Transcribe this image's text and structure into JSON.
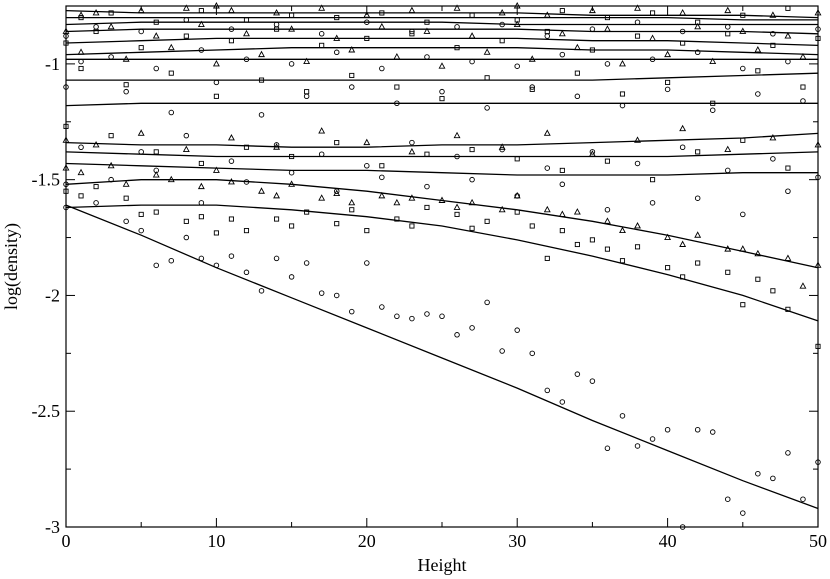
{
  "chart_data": {
    "type": "scatter",
    "title": "",
    "xlabel": "Height",
    "ylabel": "log(density)",
    "xlim": [
      0,
      50
    ],
    "ylim": [
      -3,
      -0.75
    ],
    "x_ticks": [
      0,
      10,
      20,
      30,
      40,
      50
    ],
    "x_tick_labels": [
      "0",
      "10",
      "20",
      "30",
      "40",
      "50"
    ],
    "y_ticks": [
      -3,
      -2.5,
      -2,
      -1.5,
      -1
    ],
    "y_tick_labels": [
      "-3",
      "-2.5",
      "-2",
      "-1.5",
      "-1"
    ],
    "grid": false,
    "legend": "none",
    "marker_shapes": [
      "circle",
      "square",
      "triangle"
    ],
    "series": [
      {
        "marker": "circle",
        "x": [
          0,
          2,
          4,
          5,
          6,
          7,
          8,
          9,
          10,
          11,
          12,
          13,
          14,
          15,
          16,
          17,
          18,
          19,
          20,
          21,
          22,
          23,
          24,
          25,
          26,
          27,
          28,
          29,
          30,
          31,
          32,
          33,
          34,
          35,
          36,
          37,
          38,
          39,
          40,
          41,
          42,
          43,
          44,
          45,
          46,
          47,
          48,
          49,
          50
        ],
        "y": [
          -1.62,
          -1.6,
          -1.68,
          -1.72,
          -1.87,
          -1.85,
          -1.75,
          -1.84,
          -1.87,
          -1.83,
          -1.9,
          -1.98,
          -1.84,
          -1.92,
          -1.86,
          -1.99,
          -2.0,
          -2.07,
          -1.86,
          -2.05,
          -2.09,
          -2.1,
          -2.08,
          -2.09,
          -2.17,
          -2.14,
          -2.03,
          -2.24,
          -2.15,
          -2.25,
          -2.41,
          -2.46,
          -2.34,
          -2.37,
          -2.66,
          -2.52,
          -2.65,
          -2.62,
          -2.58,
          -3.0,
          -2.58,
          -2.59,
          -2.88,
          -2.94,
          -2.77,
          -2.79,
          -2.68,
          -2.88,
          -2.72
        ]
      },
      {
        "marker": "circle",
        "x": [
          0,
          3,
          6,
          9,
          12,
          15,
          18,
          21,
          24,
          27,
          30,
          33,
          36,
          39,
          42,
          45,
          48
        ],
        "y": [
          -1.52,
          -1.5,
          -1.46,
          -1.6,
          -1.51,
          -1.47,
          -1.55,
          -1.49,
          -1.53,
          -1.5,
          -1.57,
          -1.52,
          -1.63,
          -1.6,
          -1.58,
          -1.65,
          -1.55
        ]
      },
      {
        "marker": "circle",
        "x": [
          1,
          5,
          8,
          11,
          14,
          17,
          20,
          23,
          26,
          29,
          32,
          35,
          38,
          41,
          44,
          47,
          50
        ],
        "y": [
          -1.36,
          -1.38,
          -1.31,
          -1.42,
          -1.35,
          -1.39,
          -1.44,
          -1.34,
          -1.4,
          -1.37,
          -1.45,
          -1.38,
          -1.43,
          -1.36,
          -1.46,
          -1.41,
          -1.49
        ]
      },
      {
        "marker": "circle",
        "x": [
          0,
          4,
          7,
          10,
          13,
          16,
          19,
          22,
          25,
          28,
          31,
          34,
          37,
          40,
          43,
          46,
          49
        ],
        "y": [
          -1.1,
          -1.12,
          -1.21,
          -1.08,
          -1.22,
          -1.14,
          -1.1,
          -1.17,
          -1.12,
          -1.19,
          -1.1,
          -1.14,
          -1.18,
          -1.11,
          -1.2,
          -1.13,
          -1.16
        ]
      },
      {
        "marker": "circle",
        "x": [
          1,
          3,
          6,
          9,
          12,
          15,
          18,
          21,
          24,
          27,
          30,
          33,
          36,
          39,
          42,
          45,
          48
        ],
        "y": [
          -0.99,
          -0.97,
          -1.02,
          -0.94,
          -0.98,
          -1.0,
          -0.95,
          -1.02,
          -0.97,
          -0.99,
          -1.01,
          -0.96,
          -1.0,
          -0.98,
          -0.95,
          -1.02,
          -0.99
        ]
      },
      {
        "marker": "circle",
        "x": [
          0,
          2,
          5,
          8,
          11,
          14,
          17,
          20,
          23,
          26,
          29,
          32,
          35,
          38,
          41,
          44,
          47,
          50
        ],
        "y": [
          -0.88,
          -0.84,
          -0.86,
          -0.81,
          -0.85,
          -0.83,
          -0.87,
          -0.82,
          -0.86,
          -0.84,
          -0.83,
          -0.88,
          -0.85,
          -0.82,
          -0.86,
          -0.84,
          -0.87,
          -0.85
        ]
      },
      {
        "marker": "square",
        "x": [
          0,
          1,
          2,
          4,
          5,
          6,
          8,
          9,
          10,
          11,
          12,
          14,
          15,
          16,
          18,
          19,
          20,
          22,
          23,
          24,
          26,
          27,
          28,
          30,
          31,
          32,
          33,
          34,
          35,
          36,
          37,
          38,
          40,
          41,
          42,
          44,
          45,
          46,
          47,
          48,
          50
        ],
        "y": [
          -1.55,
          -1.57,
          -1.53,
          -1.58,
          -1.65,
          -1.64,
          -1.68,
          -1.66,
          -1.73,
          -1.67,
          -1.72,
          -1.67,
          -1.7,
          -1.64,
          -1.69,
          -1.63,
          -1.72,
          -1.67,
          -1.7,
          -1.62,
          -1.65,
          -1.71,
          -1.68,
          -1.64,
          -1.7,
          -1.84,
          -1.72,
          -1.78,
          -1.76,
          -1.8,
          -1.85,
          -1.79,
          -1.88,
          -1.92,
          -1.86,
          -1.9,
          -2.04,
          -1.93,
          -1.98,
          -2.06,
          -2.22
        ]
      },
      {
        "marker": "square",
        "x": [
          0,
          3,
          6,
          9,
          12,
          15,
          18,
          21,
          24,
          27,
          30,
          33,
          36,
          39,
          42,
          45,
          48
        ],
        "y": [
          -1.27,
          -1.31,
          -1.38,
          -1.43,
          -1.36,
          -1.4,
          -1.34,
          -1.44,
          -1.39,
          -1.37,
          -1.41,
          -1.46,
          -1.42,
          -1.5,
          -1.38,
          -1.33,
          -1.45
        ]
      },
      {
        "marker": "square",
        "x": [
          1,
          4,
          7,
          10,
          13,
          16,
          19,
          22,
          25,
          28,
          31,
          34,
          37,
          40,
          43,
          46,
          49
        ],
        "y": [
          -1.02,
          -1.09,
          -1.04,
          -1.14,
          -1.07,
          -1.12,
          -1.05,
          -1.1,
          -1.15,
          -1.06,
          -1.11,
          -1.04,
          -1.13,
          -1.08,
          -1.17,
          -1.03,
          -1.1
        ]
      },
      {
        "marker": "square",
        "x": [
          0,
          2,
          5,
          8,
          11,
          14,
          17,
          20,
          23,
          26,
          29,
          32,
          35,
          38,
          41,
          44,
          47,
          50
        ],
        "y": [
          -0.91,
          -0.86,
          -0.93,
          -0.88,
          -0.9,
          -0.85,
          -0.92,
          -0.89,
          -0.87,
          -0.93,
          -0.9,
          -0.86,
          -0.94,
          -0.88,
          -0.91,
          -0.87,
          -0.92,
          -0.89
        ]
      },
      {
        "marker": "square",
        "x": [
          1,
          3,
          6,
          9,
          12,
          15,
          18,
          21,
          24,
          27,
          30,
          33,
          36,
          39,
          42,
          45,
          48
        ],
        "y": [
          -0.8,
          -0.78,
          -0.82,
          -0.77,
          -0.81,
          -0.79,
          -0.8,
          -0.78,
          -0.82,
          -0.79,
          -0.81,
          -0.77,
          -0.8,
          -0.78,
          -0.82,
          -0.79,
          -0.76
        ]
      },
      {
        "marker": "triangle",
        "x": [
          0,
          1,
          3,
          4,
          6,
          7,
          9,
          10,
          11,
          13,
          14,
          15,
          17,
          18,
          19,
          21,
          22,
          23,
          25,
          26,
          27,
          29,
          30,
          32,
          33,
          34,
          36,
          37,
          38,
          40,
          41,
          42,
          44,
          45,
          46,
          48,
          49,
          50
        ],
        "y": [
          -1.45,
          -1.47,
          -1.44,
          -1.52,
          -1.48,
          -1.5,
          -1.53,
          -1.46,
          -1.51,
          -1.55,
          -1.57,
          -1.52,
          -1.58,
          -1.56,
          -1.6,
          -1.57,
          -1.6,
          -1.58,
          -1.59,
          -1.62,
          -1.6,
          -1.63,
          -1.57,
          -1.63,
          -1.65,
          -1.64,
          -1.68,
          -1.72,
          -1.7,
          -1.75,
          -1.78,
          -1.74,
          -1.8,
          -1.8,
          -1.82,
          -1.84,
          -1.96,
          -1.87
        ]
      },
      {
        "marker": "triangle",
        "x": [
          0,
          2,
          5,
          8,
          11,
          14,
          17,
          20,
          23,
          26,
          29,
          32,
          35,
          38,
          41,
          44,
          47,
          50
        ],
        "y": [
          -1.33,
          -1.35,
          -1.3,
          -1.37,
          -1.32,
          -1.36,
          -1.29,
          -1.34,
          -1.38,
          -1.31,
          -1.36,
          -1.3,
          -1.39,
          -1.33,
          -1.28,
          -1.37,
          -1.32,
          -1.35
        ]
      },
      {
        "marker": "triangle",
        "x": [
          1,
          4,
          7,
          10,
          13,
          16,
          19,
          22,
          25,
          28,
          31,
          34,
          37,
          40,
          43,
          46,
          49
        ],
        "y": [
          -0.95,
          -0.98,
          -0.93,
          -1.0,
          -0.96,
          -0.99,
          -0.94,
          -0.97,
          -1.01,
          -0.95,
          -0.98,
          -0.93,
          -1.0,
          -0.96,
          -0.99,
          -0.94,
          -0.97
        ]
      },
      {
        "marker": "triangle",
        "x": [
          0,
          3,
          6,
          9,
          12,
          15,
          18,
          21,
          24,
          27,
          30,
          33,
          36,
          39,
          42,
          45,
          48
        ],
        "y": [
          -0.86,
          -0.84,
          -0.88,
          -0.83,
          -0.87,
          -0.85,
          -0.89,
          -0.84,
          -0.86,
          -0.88,
          -0.83,
          -0.87,
          -0.85,
          -0.89,
          -0.84,
          -0.86,
          -0.88
        ]
      },
      {
        "marker": "triangle",
        "x": [
          1,
          2,
          5,
          8,
          10,
          11,
          14,
          17,
          20,
          23,
          26,
          29,
          30,
          32,
          35,
          38,
          41,
          44,
          47,
          50
        ],
        "y": [
          -0.79,
          -0.78,
          -0.77,
          -0.76,
          -0.75,
          -0.77,
          -0.78,
          -0.76,
          -0.79,
          -0.77,
          -0.76,
          -0.78,
          -0.75,
          -0.79,
          -0.77,
          -0.76,
          -0.78,
          -0.77,
          -0.79,
          -0.78
        ]
      }
    ],
    "fitted_curves": [
      {
        "x": [
          0,
          5,
          10,
          15,
          20,
          25,
          30,
          35,
          40,
          45,
          50
        ],
        "y": [
          -1.61,
          -1.74,
          -1.88,
          -2.01,
          -2.14,
          -2.27,
          -2.4,
          -2.54,
          -2.67,
          -2.8,
          -2.92
        ]
      },
      {
        "x": [
          0,
          5,
          10,
          15,
          20,
          25,
          30,
          35,
          40,
          45,
          50
        ],
        "y": [
          -1.62,
          -1.61,
          -1.61,
          -1.63,
          -1.66,
          -1.7,
          -1.76,
          -1.83,
          -1.91,
          -2.0,
          -2.11
        ]
      },
      {
        "x": [
          0,
          5,
          10,
          15,
          20,
          25,
          30,
          35,
          40,
          45,
          50
        ],
        "y": [
          -1.52,
          -1.5,
          -1.5,
          -1.52,
          -1.55,
          -1.59,
          -1.63,
          -1.68,
          -1.74,
          -1.81,
          -1.88
        ]
      },
      {
        "x": [
          0,
          5,
          10,
          15,
          20,
          25,
          30,
          35,
          40,
          45,
          50
        ],
        "y": [
          -1.43,
          -1.44,
          -1.45,
          -1.46,
          -1.46,
          -1.47,
          -1.48,
          -1.48,
          -1.48,
          -1.47,
          -1.47
        ]
      },
      {
        "x": [
          0,
          5,
          10,
          15,
          20,
          25,
          30,
          35,
          40,
          45,
          50
        ],
        "y": [
          -1.38,
          -1.39,
          -1.4,
          -1.4,
          -1.4,
          -1.4,
          -1.4,
          -1.4,
          -1.4,
          -1.39,
          -1.38
        ]
      },
      {
        "x": [
          0,
          5,
          10,
          15,
          20,
          25,
          30,
          35,
          40,
          45,
          50
        ],
        "y": [
          -1.34,
          -1.35,
          -1.35,
          -1.36,
          -1.36,
          -1.35,
          -1.35,
          -1.34,
          -1.33,
          -1.32,
          -1.3
        ]
      },
      {
        "x": [
          0,
          5,
          10,
          15,
          20,
          25,
          30,
          35,
          40,
          45,
          50
        ],
        "y": [
          -1.18,
          -1.17,
          -1.17,
          -1.17,
          -1.17,
          -1.17,
          -1.17,
          -1.17,
          -1.17,
          -1.17,
          -1.17
        ]
      },
      {
        "x": [
          0,
          5,
          10,
          15,
          20,
          25,
          30,
          35,
          40,
          45,
          50
        ],
        "y": [
          -1.07,
          -1.07,
          -1.07,
          -1.07,
          -1.07,
          -1.07,
          -1.07,
          -1.07,
          -1.06,
          -1.05,
          -1.04
        ]
      },
      {
        "x": [
          0,
          5,
          10,
          15,
          20,
          25,
          30,
          35,
          40,
          45,
          50
        ],
        "y": [
          -0.98,
          -0.98,
          -0.98,
          -0.98,
          -0.98,
          -0.98,
          -0.98,
          -0.98,
          -0.98,
          -0.98,
          -0.98
        ]
      },
      {
        "x": [
          0,
          5,
          10,
          15,
          20,
          25,
          30,
          35,
          40,
          45,
          50
        ],
        "y": [
          -0.96,
          -0.95,
          -0.94,
          -0.93,
          -0.93,
          -0.93,
          -0.93,
          -0.94,
          -0.94,
          -0.95,
          -0.96
        ]
      },
      {
        "x": [
          0,
          5,
          10,
          15,
          20,
          25,
          30,
          35,
          40,
          45,
          50
        ],
        "y": [
          -0.91,
          -0.9,
          -0.89,
          -0.89,
          -0.89,
          -0.89,
          -0.89,
          -0.9,
          -0.9,
          -0.91,
          -0.92
        ]
      },
      {
        "x": [
          0,
          5,
          10,
          15,
          20,
          25,
          30,
          35,
          40,
          45,
          50
        ],
        "y": [
          -0.86,
          -0.85,
          -0.85,
          -0.85,
          -0.85,
          -0.85,
          -0.85,
          -0.86,
          -0.86,
          -0.86,
          -0.87
        ]
      },
      {
        "x": [
          0,
          5,
          10,
          15,
          20,
          25,
          30,
          35,
          40,
          45,
          50
        ],
        "y": [
          -0.83,
          -0.82,
          -0.82,
          -0.82,
          -0.82,
          -0.82,
          -0.83,
          -0.83,
          -0.83,
          -0.83,
          -0.83
        ]
      },
      {
        "x": [
          0,
          5,
          10,
          15,
          20,
          25,
          30,
          35,
          40,
          45,
          50
        ],
        "y": [
          -0.8,
          -0.8,
          -0.8,
          -0.8,
          -0.8,
          -0.8,
          -0.8,
          -0.8,
          -0.8,
          -0.81,
          -0.81
        ]
      },
      {
        "x": [
          0,
          5,
          10,
          15,
          20,
          25,
          30,
          35,
          40,
          45,
          50
        ],
        "y": [
          -0.77,
          -0.78,
          -0.78,
          -0.78,
          -0.78,
          -0.78,
          -0.78,
          -0.79,
          -0.79,
          -0.79,
          -0.8
        ]
      }
    ]
  }
}
